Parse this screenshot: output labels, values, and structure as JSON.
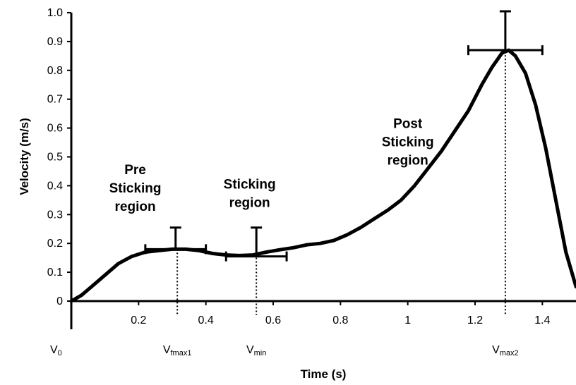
{
  "chart_data": {
    "type": "line",
    "title": "",
    "xlabel": "Time (s)",
    "ylabel": "Velocity (m/s)",
    "xlim": [
      0,
      1.5
    ],
    "ylim": [
      0,
      1.0
    ],
    "x_ticks": [
      0.2,
      0.4,
      0.6,
      0.8,
      1,
      1.2,
      1.4
    ],
    "y_ticks": [
      "0",
      "0.1",
      "0.2",
      "0.3",
      "0.4",
      "0.5",
      "0.6",
      "0.7",
      "0.8",
      "0.9",
      "1.0"
    ],
    "grid": false,
    "legend": "none",
    "series": [
      {
        "x": [
          0.0,
          0.03,
          0.06,
          0.1,
          0.14,
          0.18,
          0.22,
          0.26,
          0.3,
          0.34,
          0.38,
          0.42,
          0.46,
          0.5,
          0.54,
          0.58,
          0.62,
          0.66,
          0.7,
          0.74,
          0.78,
          0.82,
          0.86,
          0.9,
          0.94,
          0.98,
          1.02,
          1.06,
          1.1,
          1.14,
          1.18,
          1.22,
          1.25,
          1.28,
          1.3,
          1.32,
          1.35,
          1.38,
          1.41,
          1.44,
          1.47,
          1.5
        ],
        "y": [
          0.0,
          0.02,
          0.05,
          0.09,
          0.13,
          0.155,
          0.17,
          0.175,
          0.18,
          0.18,
          0.175,
          0.165,
          0.16,
          0.158,
          0.16,
          0.17,
          0.178,
          0.185,
          0.195,
          0.2,
          0.21,
          0.23,
          0.255,
          0.285,
          0.315,
          0.35,
          0.4,
          0.46,
          0.52,
          0.59,
          0.66,
          0.75,
          0.81,
          0.86,
          0.87,
          0.85,
          0.79,
          0.68,
          0.53,
          0.35,
          0.17,
          0.05
        ]
      }
    ],
    "error_bars": [
      {
        "x": 0.31,
        "y": 0.18,
        "x_err": 0.09,
        "y_err": 0.075
      },
      {
        "x": 0.55,
        "y": 0.155,
        "x_err": 0.09,
        "y_err": 0.1
      },
      {
        "x": 1.29,
        "y": 0.87,
        "x_err": 0.11,
        "y_err": 0.135
      }
    ],
    "dotted_markers": [
      {
        "x": 0.315,
        "label": "V",
        "sub": "fmax1"
      },
      {
        "x": 0.55,
        "label": "V",
        "sub": "min"
      },
      {
        "x": 1.29,
        "label": "V",
        "sub": "max2"
      }
    ],
    "origin_marker": {
      "label": "V",
      "sub": "0"
    },
    "annotations": [
      {
        "lines": [
          "Pre",
          "Sticking",
          "region"
        ],
        "x": 0.19,
        "y": 0.44
      },
      {
        "lines": [
          "Sticking",
          "region"
        ],
        "x": 0.53,
        "y": 0.39
      },
      {
        "lines": [
          "Post",
          "Sticking",
          "region"
        ],
        "x": 1.0,
        "y": 0.6
      }
    ]
  }
}
